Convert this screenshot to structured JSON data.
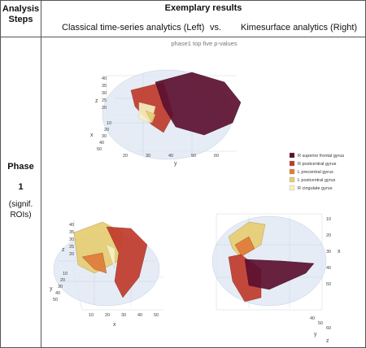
{
  "header": {
    "steps_title": "Analysis Steps",
    "title": "Exemplary results",
    "left": "Classical time-series analytics (Left)",
    "vs": "vs.",
    "right": "Kimesurface analytics (Right)"
  },
  "row": {
    "phase": "Phase",
    "number": "1",
    "note": "(signif.",
    "note2": "ROIs)"
  },
  "figure": {
    "title": "phase1 top five p-values",
    "legend": [
      {
        "name": "R superior frontal gyrus",
        "color": "#5c1030"
      },
      {
        "name": "R postcentral gyrus",
        "color": "#c0392b"
      },
      {
        "name": "L precentral gyrus",
        "color": "#e07b39"
      },
      {
        "name": "L postcentral gyrus",
        "color": "#e6cc72"
      },
      {
        "name": "R cingulate gyrus",
        "color": "#f6f1c0"
      }
    ],
    "views": [
      {
        "labels": [
          "40",
          "35",
          "30",
          "25",
          "20",
          "z",
          "10",
          "20",
          "30",
          "40",
          "50",
          "x",
          "20",
          "30",
          "40",
          "50",
          "60",
          "y"
        ]
      },
      {
        "labels": [
          "40",
          "35",
          "30",
          "25",
          "20",
          "z",
          "10",
          "20",
          "30",
          "40",
          "50",
          "y",
          "10",
          "20",
          "30",
          "40",
          "50",
          "x"
        ]
      },
      {
        "labels": [
          "10",
          "20",
          "30",
          "40",
          "50",
          "x",
          "40",
          "50",
          "60",
          "y",
          "z"
        ]
      }
    ]
  }
}
